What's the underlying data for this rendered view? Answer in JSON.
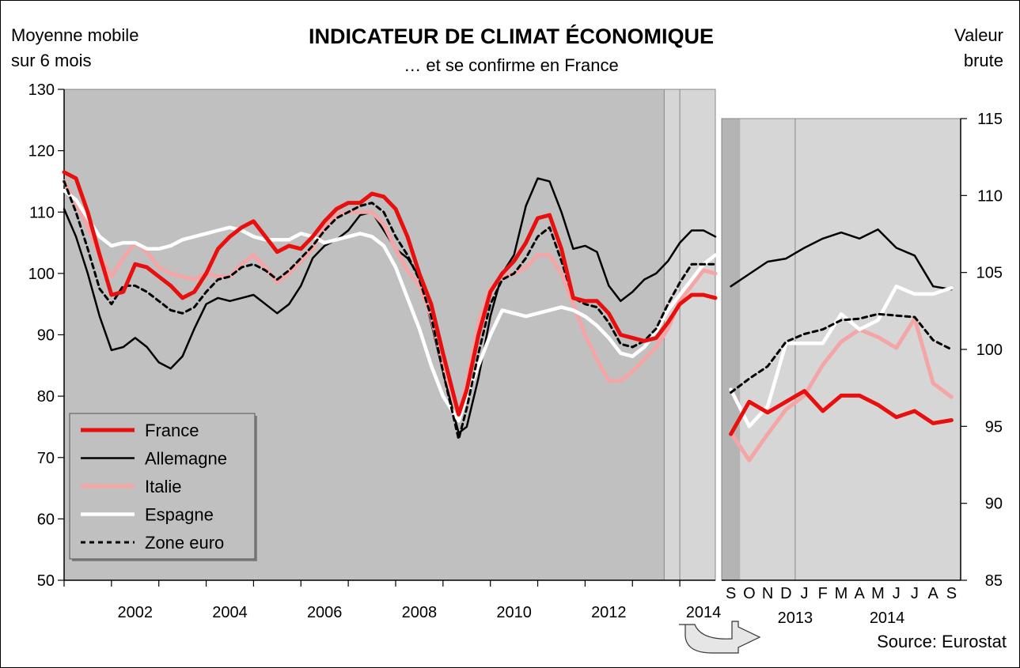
{
  "title": "INDICATEUR DE CLIMAT ÉCONOMIQUE",
  "subtitle": "… et se confirme en France",
  "left_axis_label_line1": "Moyenne mobile",
  "left_axis_label_line2": "sur 6 mois",
  "right_axis_label_line1": "Valeur",
  "right_axis_label_line2": "brute",
  "source": "Source: Eurostat",
  "colors": {
    "france": "#e8100f",
    "allemagne": "#000000",
    "italie": "#f4a6a6",
    "espagne": "#ffffff",
    "zone_euro": "#000000",
    "plot_bg": "#c0c0c0",
    "recent_bg": "#d6d6d6"
  },
  "legend": {
    "placement": "bottom-left",
    "items": [
      {
        "name": "France",
        "key": "france"
      },
      {
        "name": "Allemagne",
        "key": "allemagne"
      },
      {
        "name": "Italie",
        "key": "italie"
      },
      {
        "name": "Espagne",
        "key": "espagne"
      },
      {
        "name": "Zone euro",
        "key": "zone_euro"
      }
    ]
  },
  "chart_data": [
    {
      "type": "line",
      "id": "main",
      "ylim": [
        50,
        130
      ],
      "xlim": [
        2001.0,
        2014.75
      ],
      "yticks": [
        50,
        60,
        70,
        80,
        90,
        100,
        110,
        120,
        130
      ],
      "xticks": [
        2002,
        2004,
        2006,
        2008,
        2010,
        2012,
        2014
      ],
      "grid": false,
      "shaded_from": 2013.67,
      "series": [
        {
          "name": "France",
          "key": "france",
          "x": [
            2001.0,
            2001.25,
            2001.5,
            2001.75,
            2002.0,
            2002.25,
            2002.5,
            2002.75,
            2003.0,
            2003.25,
            2003.5,
            2003.75,
            2004.0,
            2004.25,
            2004.5,
            2004.75,
            2005.0,
            2005.25,
            2005.5,
            2005.75,
            2006.0,
            2006.25,
            2006.5,
            2006.75,
            2007.0,
            2007.25,
            2007.5,
            2007.75,
            2008.0,
            2008.25,
            2008.5,
            2008.75,
            2009.0,
            2009.33,
            2009.5,
            2009.75,
            2010.0,
            2010.25,
            2010.5,
            2010.75,
            2011.0,
            2011.25,
            2011.5,
            2011.75,
            2012.0,
            2012.25,
            2012.5,
            2012.75,
            2013.0,
            2013.25,
            2013.5,
            2013.75,
            2014.0,
            2014.25,
            2014.5,
            2014.75
          ],
          "y": [
            116.5,
            115.5,
            110,
            103,
            96.5,
            97,
            101.5,
            101,
            99.5,
            98,
            96,
            97,
            100,
            104,
            106,
            107.5,
            108.5,
            106,
            103.5,
            104.5,
            104,
            106,
            108.5,
            110.5,
            111.5,
            111.5,
            113,
            112.5,
            110.5,
            106,
            100,
            95,
            87,
            77,
            81,
            90,
            97,
            100,
            102,
            105,
            109,
            109.5,
            104,
            96,
            95.5,
            95.5,
            93.5,
            90,
            89.5,
            89,
            89.5,
            92,
            95,
            96.5,
            96.5,
            96
          ]
        },
        {
          "name": "Allemagne",
          "key": "allemagne",
          "x": [
            2001.0,
            2001.25,
            2001.5,
            2001.75,
            2002.0,
            2002.25,
            2002.5,
            2002.75,
            2003.0,
            2003.25,
            2003.5,
            2003.75,
            2004.0,
            2004.25,
            2004.5,
            2004.75,
            2005.0,
            2005.25,
            2005.5,
            2005.75,
            2006.0,
            2006.25,
            2006.5,
            2006.75,
            2007.0,
            2007.25,
            2007.5,
            2007.75,
            2008.0,
            2008.25,
            2008.5,
            2008.75,
            2009.0,
            2009.33,
            2009.5,
            2009.75,
            2010.0,
            2010.25,
            2010.5,
            2010.75,
            2011.0,
            2011.25,
            2011.5,
            2011.75,
            2012.0,
            2012.25,
            2012.5,
            2012.75,
            2013.0,
            2013.25,
            2013.5,
            2013.75,
            2014.0,
            2014.25,
            2014.5,
            2014.75
          ],
          "y": [
            110.5,
            106,
            100,
            93,
            87.5,
            88,
            89.5,
            88,
            85.5,
            84.5,
            86.5,
            91,
            95,
            96,
            95.5,
            96,
            96.5,
            95,
            93.5,
            95,
            98,
            102.5,
            104.5,
            105.5,
            107,
            109.5,
            110,
            107,
            104,
            102.5,
            99.5,
            92,
            84,
            74,
            75,
            83,
            93,
            100,
            103,
            111,
            115.5,
            115,
            110,
            104,
            104.5,
            103.5,
            98,
            95.5,
            97,
            99,
            100,
            102,
            105,
            107,
            107,
            106
          ]
        },
        {
          "name": "Italie",
          "key": "italie",
          "x": [
            2001.0,
            2001.25,
            2001.5,
            2001.75,
            2002.0,
            2002.25,
            2002.5,
            2002.75,
            2003.0,
            2003.25,
            2003.5,
            2003.75,
            2004.0,
            2004.25,
            2004.5,
            2004.75,
            2005.0,
            2005.25,
            2005.5,
            2005.75,
            2006.0,
            2006.25,
            2006.5,
            2006.75,
            2007.0,
            2007.25,
            2007.5,
            2007.75,
            2008.0,
            2008.25,
            2008.5,
            2008.75,
            2009.0,
            2009.33,
            2009.5,
            2009.75,
            2010.0,
            2010.25,
            2010.5,
            2010.75,
            2011.0,
            2011.25,
            2011.5,
            2011.75,
            2012.0,
            2012.25,
            2012.5,
            2012.75,
            2013.0,
            2013.25,
            2013.5,
            2013.75,
            2014.0,
            2014.25,
            2014.5,
            2014.75
          ],
          "y": [
            115,
            111.5,
            107.5,
            103,
            99.5,
            102.5,
            105,
            103.5,
            101,
            100,
            99.5,
            99,
            100,
            99.5,
            99.5,
            101.5,
            103,
            101,
            98.5,
            100,
            102,
            104,
            107.5,
            109.5,
            110,
            110,
            110,
            108,
            104,
            100.5,
            98,
            93,
            85,
            77,
            82,
            92,
            97.5,
            99.5,
            100,
            101,
            103,
            103,
            100,
            95,
            90,
            86,
            82.5,
            82.5,
            84,
            86,
            88,
            91,
            95.5,
            98,
            100.5,
            100
          ]
        },
        {
          "name": "Espagne",
          "key": "espagne",
          "x": [
            2001.0,
            2001.25,
            2001.5,
            2001.75,
            2002.0,
            2002.25,
            2002.5,
            2002.75,
            2003.0,
            2003.25,
            2003.5,
            2003.75,
            2004.0,
            2004.25,
            2004.5,
            2004.75,
            2005.0,
            2005.25,
            2005.5,
            2005.75,
            2006.0,
            2006.25,
            2006.5,
            2006.75,
            2007.0,
            2007.25,
            2007.5,
            2007.75,
            2008.0,
            2008.25,
            2008.5,
            2008.75,
            2009.0,
            2009.33,
            2009.5,
            2009.75,
            2010.0,
            2010.25,
            2010.5,
            2010.75,
            2011.0,
            2011.25,
            2011.5,
            2011.75,
            2012.0,
            2012.25,
            2012.5,
            2012.75,
            2013.0,
            2013.25,
            2013.5,
            2013.75,
            2014.0,
            2014.25,
            2014.5,
            2014.75
          ],
          "y": [
            113.5,
            112,
            109,
            106,
            104.5,
            105,
            105,
            104,
            104,
            104.5,
            105.5,
            106,
            106.5,
            107,
            107.5,
            107,
            106,
            105.5,
            105.5,
            105.5,
            106.5,
            106,
            105,
            105.5,
            106,
            106.5,
            106,
            104.5,
            101,
            96,
            91,
            85,
            80,
            76,
            80,
            85,
            90,
            94,
            93.5,
            93,
            93.5,
            94,
            94.5,
            94,
            93,
            91.5,
            89.5,
            87,
            86.5,
            88,
            90.5,
            94,
            96.5,
            99,
            101.5,
            103
          ]
        },
        {
          "name": "Zone euro",
          "key": "zone_euro",
          "x": [
            2001.0,
            2001.25,
            2001.5,
            2001.75,
            2002.0,
            2002.25,
            2002.5,
            2002.75,
            2003.0,
            2003.25,
            2003.5,
            2003.75,
            2004.0,
            2004.25,
            2004.5,
            2004.75,
            2005.0,
            2005.25,
            2005.5,
            2005.75,
            2006.0,
            2006.25,
            2006.5,
            2006.75,
            2007.0,
            2007.25,
            2007.5,
            2007.75,
            2008.0,
            2008.25,
            2008.5,
            2008.75,
            2009.0,
            2009.33,
            2009.5,
            2009.75,
            2010.0,
            2010.25,
            2010.5,
            2010.75,
            2011.0,
            2011.25,
            2011.5,
            2011.75,
            2012.0,
            2012.25,
            2012.5,
            2012.75,
            2013.0,
            2013.25,
            2013.5,
            2013.75,
            2014.0,
            2014.25,
            2014.5,
            2014.75
          ],
          "y": [
            115,
            110,
            104,
            97.5,
            95,
            98,
            98,
            97,
            95.5,
            94,
            93.5,
            94.5,
            97,
            99,
            99.5,
            101,
            101.5,
            100.5,
            99,
            100.5,
            102.5,
            104.5,
            107,
            109,
            110,
            111,
            111.5,
            110,
            106,
            103,
            99,
            93,
            84,
            73,
            78,
            87,
            95,
            99,
            100,
            102.5,
            106,
            107.5,
            102,
            96,
            95,
            94.5,
            92,
            88.5,
            88,
            89,
            91,
            95,
            98.5,
            101.5,
            101.5,
            101.5
          ]
        }
      ]
    },
    {
      "type": "line",
      "id": "inset",
      "ylim": [
        85,
        115
      ],
      "yticks": [
        85,
        90,
        95,
        100,
        105,
        110,
        115
      ],
      "categories": [
        "S",
        "O",
        "N",
        "D",
        "J",
        "F",
        "M",
        "A",
        "M",
        "J",
        "J",
        "A",
        "S"
      ],
      "year_labels": [
        {
          "label": "2013"
        },
        {
          "label": "2014"
        }
      ],
      "grid": false,
      "series": [
        {
          "name": "France",
          "key": "france",
          "values": [
            94.5,
            96.6,
            95.9,
            96.6,
            97.3,
            96.0,
            97.0,
            97.0,
            96.4,
            95.6,
            96.0,
            95.2,
            95.4
          ]
        },
        {
          "name": "Allemagne",
          "key": "allemagne",
          "values": [
            104.1,
            104.9,
            105.7,
            105.9,
            106.6,
            107.2,
            107.6,
            107.2,
            107.8,
            106.6,
            106.1,
            104.1,
            103.9
          ]
        },
        {
          "name": "Italie",
          "key": "italie",
          "values": [
            94.6,
            92.8,
            94.5,
            96.1,
            97.0,
            99.0,
            100.5,
            101.3,
            100.8,
            100.1,
            102.0,
            97.8,
            96.9
          ]
        },
        {
          "name": "Espagne",
          "key": "espagne",
          "values": [
            97.4,
            95.0,
            96.3,
            100.4,
            100.4,
            100.4,
            102.3,
            101.3,
            101.9,
            104.1,
            103.6,
            103.6,
            104.0
          ]
        },
        {
          "name": "Zone euro",
          "key": "zone_euro",
          "values": [
            97.2,
            98.1,
            98.9,
            100.5,
            101.0,
            101.3,
            101.9,
            102.0,
            102.3,
            102.2,
            102.1,
            100.6,
            100.0
          ]
        }
      ]
    }
  ]
}
